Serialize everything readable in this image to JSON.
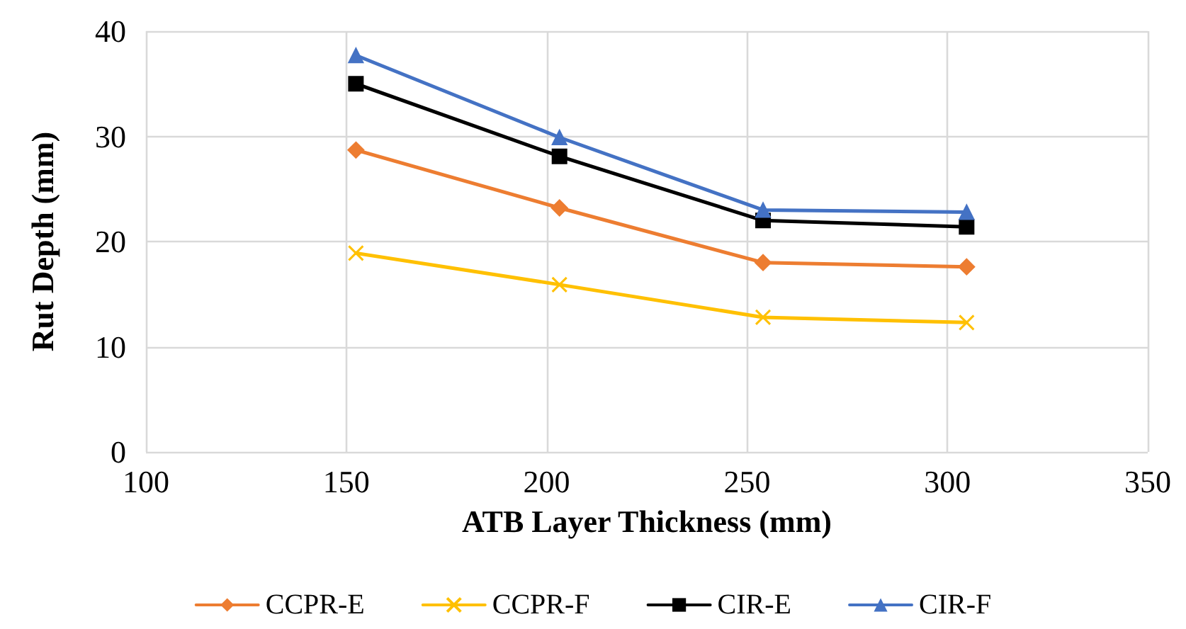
{
  "chart_data": {
    "type": "line",
    "xlabel": "ATB Layer Thickness (mm)",
    "ylabel": "Rut Depth (mm)",
    "x": [
      152.4,
      203.2,
      254,
      304.8
    ],
    "series": [
      {
        "name": "CCPR-E",
        "color": "#ed7d31",
        "marker": "diamond",
        "values": [
          28.7,
          23.2,
          18.0,
          17.6
        ]
      },
      {
        "name": "CCPR-F",
        "color": "#ffc000",
        "marker": "cross",
        "values": [
          18.9,
          15.9,
          12.8,
          12.3
        ]
      },
      {
        "name": "CIR-E",
        "color": "#000000",
        "marker": "square",
        "values": [
          35.0,
          28.1,
          22.0,
          21.4
        ]
      },
      {
        "name": "CIR-F",
        "color": "#4472c4",
        "marker": "triangle",
        "values": [
          37.7,
          29.9,
          23.0,
          22.8
        ]
      }
    ],
    "xlim": [
      100,
      350
    ],
    "xticks": [
      100,
      150,
      200,
      250,
      300,
      350
    ],
    "ylim": [
      0,
      40
    ],
    "yticks": [
      0,
      10,
      20,
      30,
      40
    ],
    "grid": true,
    "legend": "bottom"
  }
}
